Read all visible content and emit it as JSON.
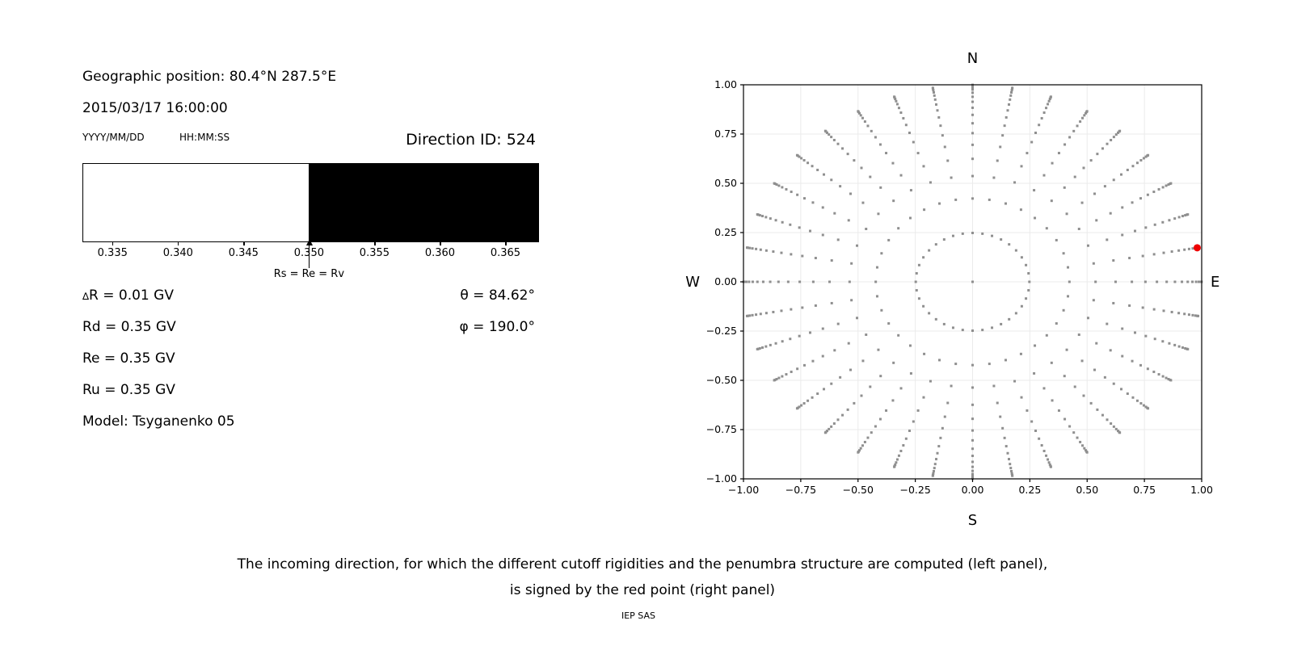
{
  "left_panel": {
    "geo_position": "Geographic position: 80.4°N 287.5°E",
    "datetime": "2015/03/17 16:00:00",
    "date_format": "YYYY/MM/DD",
    "time_format": "HH:MM:SS",
    "direction_id": "Direction ID: 524",
    "params": {
      "delta_symbol": "∆",
      "delta_r_rest": "R = 0.01 GV",
      "rd": "Rd = 0.35 GV",
      "re": "Re = 0.35 GV",
      "ru": "Ru = 0.35 GV",
      "model": "Model: Tsyganenko 05",
      "theta_symbol": "θ",
      "theta_rest": " = 84.62°",
      "phi_symbol": "φ",
      "phi_rest": " = 190.0°"
    }
  },
  "caption": {
    "line1": "The incoming direction, for which the different cutoff rigidities and the penumbra structure are computed (left panel),",
    "line2": "is signed by the red point (right panel)",
    "credit": "IEP SAS"
  },
  "chart_data": [
    {
      "type": "bar",
      "title": "penumbra structure",
      "xlim": [
        0.3327,
        0.3675
      ],
      "x_ticks": [
        0.335,
        0.34,
        0.345,
        0.35,
        0.355,
        0.36,
        0.365
      ],
      "x_tick_labels": [
        "0.335",
        "0.340",
        "0.345",
        "0.350",
        "0.355",
        "0.360",
        "0.365"
      ],
      "segments": [
        {
          "from": 0.3327,
          "to": 0.35,
          "color": "#ffffff",
          "state": "allowed"
        },
        {
          "from": 0.35,
          "to": 0.3675,
          "color": "#000000",
          "state": "forbidden"
        }
      ],
      "arrow": {
        "x": 0.35,
        "label": "Rs = Re = Rv"
      }
    },
    {
      "type": "scatter",
      "title": "incoming directions map",
      "xlim": [
        -1.0,
        1.0
      ],
      "ylim": [
        -1.0,
        1.0
      ],
      "tick_values": [
        -1.0,
        -0.75,
        -0.5,
        -0.25,
        0.0,
        0.25,
        0.5,
        0.75,
        1.0
      ],
      "tick_labels": [
        "−1.00",
        "−0.75",
        "−0.50",
        "−0.25",
        "0.00",
        "0.25",
        "0.50",
        "0.75",
        "1.00"
      ],
      "compass": {
        "top": "N",
        "bottom": "S",
        "left": "W",
        "right": "E"
      },
      "grid": true,
      "grid_color": "#ebebeb",
      "point_color": "#8f8f8f",
      "center_point": [
        0,
        0
      ],
      "azimuths_deg": [
        0,
        10,
        20,
        30,
        40,
        50,
        60,
        70,
        80,
        90,
        100,
        110,
        120,
        130,
        140,
        150,
        160,
        170,
        180,
        190,
        200,
        210,
        220,
        230,
        240,
        250,
        260,
        270,
        280,
        290,
        300,
        310,
        320,
        330,
        340,
        350
      ],
      "ring_radii": [
        0.24803,
        0.42274,
        0.53674,
        0.62422,
        0.69527,
        0.75455,
        0.80465,
        0.84722,
        0.88333,
        0.91376,
        0.93907,
        0.95963,
        0.97578,
        0.98772,
        0.9956,
        0.99951
      ],
      "red_point": {
        "x": 0.98047,
        "y": 0.17288,
        "color": "#ee0000",
        "id": 524,
        "theta_deg": 84.62,
        "phi_deg": 190.0
      }
    }
  ]
}
